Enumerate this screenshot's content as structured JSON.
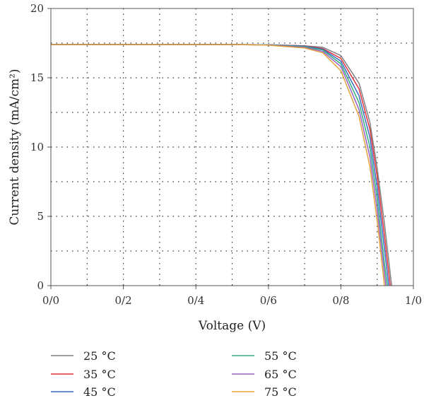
{
  "chart_data": {
    "type": "line",
    "title": "",
    "xlabel": "Voltage (V)",
    "ylabel": "Current density (mA/cm²)",
    "xlim": [
      0,
      1.0
    ],
    "ylim": [
      0,
      20
    ],
    "x_ticks": [
      "0/0",
      "0/2",
      "0/4",
      "0/6",
      "0/8",
      "1/0"
    ],
    "y_ticks": [
      "0",
      "5",
      "10",
      "15",
      "20"
    ],
    "grid": "dotted",
    "legend_position": "bottom",
    "series": [
      {
        "name": "25 °C",
        "color": "#808080",
        "x": [
          0.0,
          0.5,
          0.6,
          0.7,
          0.75,
          0.8,
          0.85,
          0.88,
          0.9,
          0.92,
          0.94
        ],
        "y": [
          17.4,
          17.4,
          17.38,
          17.3,
          17.2,
          16.6,
          14.6,
          11.8,
          8.5,
          4.5,
          0.0
        ]
      },
      {
        "name": "35 °C",
        "color": "#e0303a",
        "x": [
          0.0,
          0.5,
          0.6,
          0.7,
          0.75,
          0.8,
          0.85,
          0.88,
          0.9,
          0.92,
          0.936
        ],
        "y": [
          17.4,
          17.4,
          17.38,
          17.3,
          17.1,
          16.4,
          14.2,
          11.3,
          7.9,
          3.6,
          0.0
        ]
      },
      {
        "name": "45 °C",
        "color": "#3a6bc4",
        "x": [
          0.0,
          0.5,
          0.6,
          0.7,
          0.75,
          0.8,
          0.85,
          0.88,
          0.9,
          0.92,
          0.932
        ],
        "y": [
          17.4,
          17.4,
          17.38,
          17.28,
          17.05,
          16.2,
          13.7,
          10.7,
          7.1,
          2.7,
          0.0
        ]
      },
      {
        "name": "55 °C",
        "color": "#2fae7e",
        "x": [
          0.0,
          0.5,
          0.6,
          0.7,
          0.75,
          0.8,
          0.85,
          0.88,
          0.9,
          0.92,
          0.928
        ],
        "y": [
          17.4,
          17.4,
          17.37,
          17.25,
          17.0,
          16.0,
          13.2,
          10.0,
          6.3,
          1.6,
          0.0
        ]
      },
      {
        "name": "65 °C",
        "color": "#9b5fc0",
        "x": [
          0.0,
          0.5,
          0.6,
          0.7,
          0.75,
          0.8,
          0.85,
          0.88,
          0.9,
          0.915,
          0.924
        ],
        "y": [
          17.4,
          17.4,
          17.36,
          17.2,
          16.9,
          15.8,
          12.7,
          9.3,
          5.5,
          2.0,
          0.0
        ]
      },
      {
        "name": "75 °C",
        "color": "#e3a23a",
        "x": [
          0.0,
          0.5,
          0.6,
          0.7,
          0.75,
          0.8,
          0.85,
          0.88,
          0.9,
          0.91,
          0.92
        ],
        "y": [
          17.4,
          17.4,
          17.35,
          17.15,
          16.8,
          15.5,
          12.2,
          8.6,
          4.7,
          2.4,
          0.0
        ]
      }
    ]
  }
}
